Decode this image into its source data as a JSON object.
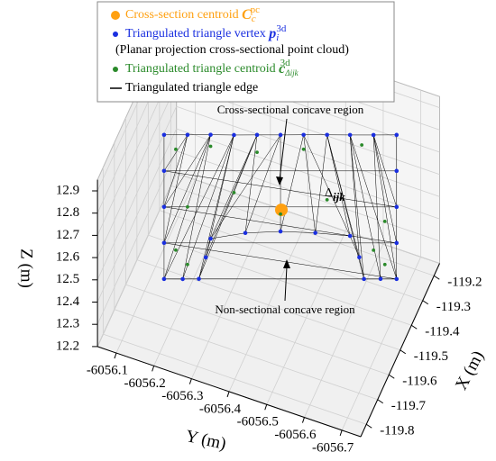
{
  "chart_data": {
    "type": "scatter3d",
    "xlabel": "X (m)",
    "ylabel": "Y (m)",
    "zlabel": "Z (m)",
    "xlim": [
      -119.85,
      -119.15
    ],
    "ylim": [
      -6056.75,
      -6056.05
    ],
    "zlim": [
      12.2,
      12.95
    ],
    "xticks": [
      -119.2,
      -119.3,
      -119.4,
      -119.5,
      -119.6,
      -119.7,
      -119.8
    ],
    "yticks": [
      -6056.1,
      -6056.2,
      -6056.3,
      -6056.4,
      -6056.5,
      -6056.6,
      -6056.7
    ],
    "zticks": [
      12.2,
      12.3,
      12.4,
      12.5,
      12.6,
      12.7,
      12.8,
      12.9
    ],
    "grid": true,
    "legend": "top",
    "series": [
      {
        "name": "Cross-section centroid",
        "symbol": {
          "base": "C",
          "sub": "c",
          "sup": "pc"
        },
        "color": "#ffa010",
        "x": [
          -119.433
        ],
        "y": [
          -6056.414
        ],
        "z": [
          12.561
        ]
      },
      {
        "name": "Triangulated triangle vertex",
        "symbol": {
          "base": "p",
          "sub": "i",
          "sup": "3d"
        },
        "note": "(Planar projection cross-sectional point cloud)",
        "color": "#1a2fe0",
        "x": [
          -119.573,
          -119.545,
          -119.517,
          -119.49,
          -119.462,
          -119.434,
          -119.406,
          -119.378,
          -119.351,
          -119.323,
          -119.295,
          -119.573,
          -119.573,
          -119.573,
          -119.573,
          -119.551,
          -119.531,
          -119.523,
          -119.517,
          -119.476,
          -119.434,
          -119.392,
          -119.351,
          -119.339,
          -119.334,
          -119.314,
          -119.295,
          -119.295,
          -119.295,
          -119.295
        ],
        "y": [
          -6056.144,
          -6056.198,
          -6056.251,
          -6056.305,
          -6056.358,
          -6056.412,
          -6056.465,
          -6056.519,
          -6056.572,
          -6056.626,
          -6056.679,
          -6056.144,
          -6056.144,
          -6056.144,
          -6056.144,
          -6056.187,
          -6056.224,
          -6056.24,
          -6056.251,
          -6056.331,
          -6056.412,
          -6056.492,
          -6056.572,
          -6056.593,
          -6056.604,
          -6056.642,
          -6056.679,
          -6056.679,
          -6056.679,
          -6056.679
        ],
        "z": [
          12.898,
          12.898,
          12.898,
          12.898,
          12.898,
          12.898,
          12.898,
          12.898,
          12.898,
          12.898,
          12.898,
          12.736,
          12.574,
          12.412,
          12.25,
          12.25,
          12.25,
          12.347,
          12.431,
          12.457,
          12.464,
          12.457,
          12.444,
          12.347,
          12.25,
          12.25,
          12.25,
          12.412,
          12.574,
          12.736
        ]
      },
      {
        "name": "Triangulated triangle centroid",
        "symbol": {
          "base": "c",
          "sub": "Δijk",
          "sup": "3d"
        },
        "color": "#2a8a2a",
        "x": [
          -119.559,
          -119.517,
          -119.462,
          -119.406,
          -119.337,
          -119.545,
          -119.49,
          -119.378,
          -119.309,
          -119.559,
          -119.545,
          -119.323,
          -119.309,
          -119.434
        ],
        "y": [
          -6056.171,
          -6056.251,
          -6056.358,
          -6056.465,
          -6056.599,
          -6056.198,
          -6056.305,
          -6056.519,
          -6056.652,
          -6056.171,
          -6056.198,
          -6056.626,
          -6056.652,
          -6056.412
        ],
        "z": [
          12.833,
          12.846,
          12.82,
          12.833,
          12.853,
          12.574,
          12.639,
          12.606,
          12.509,
          12.38,
          12.315,
          12.38,
          12.315,
          12.542
        ]
      },
      {
        "name": "Triangulated triangle edge",
        "color": "#000000"
      }
    ],
    "annotations": [
      {
        "text": "Cross-sectional concave region"
      },
      {
        "text": "Non-sectional concave region"
      },
      {
        "symbol": {
          "base": "Δ",
          "sub": "ijk"
        }
      }
    ]
  }
}
